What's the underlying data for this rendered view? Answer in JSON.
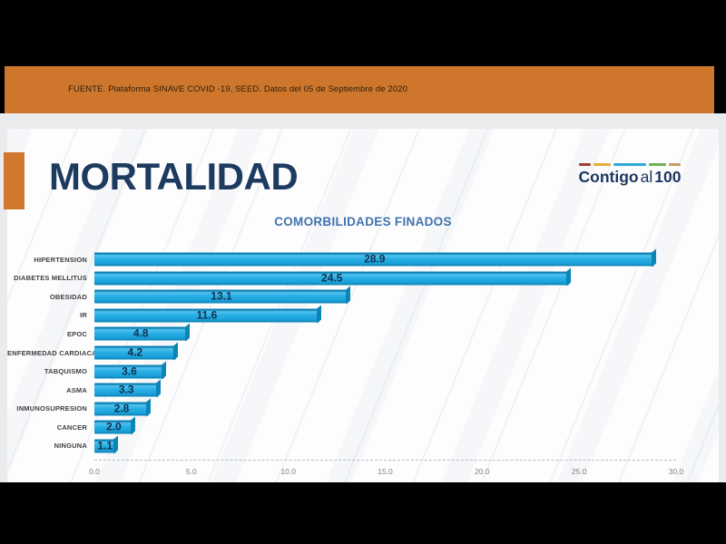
{
  "banner": {
    "source_text": "FUENTE. Plataforma SINAVE COVID -19, SEED. Datos del 05 de Septiembre de 2020",
    "background_color": "#CE762B"
  },
  "slide": {
    "title": "MORTALIDAD",
    "title_color": "#1D3A5F",
    "accent_color": "#D0782E",
    "logo": {
      "text_bold_1": "Contigo",
      "text_regular": "al",
      "text_bold_2": "100",
      "text_color": "#1E3760",
      "dash_colors": [
        "#9E3B36",
        "#E8AC3B",
        "#30A9DD",
        "#6FB254",
        "#C79A67"
      ]
    }
  },
  "chart_data": {
    "type": "bar",
    "orientation": "horizontal",
    "title": "COMORBILIDADES FINADOS",
    "title_color": "#4272AE",
    "categories": [
      "HIPERTENSION",
      "DIABETES MELLITUS",
      "OBESIDAD",
      "IR",
      "EPOC",
      "ENFERMEDAD CARDIACA",
      "TABQUISMO",
      "ASMA",
      "INMUNOSUPRESION",
      "CANCER",
      "NINGUNA"
    ],
    "values": [
      28.9,
      24.5,
      13.1,
      11.6,
      4.8,
      4.2,
      3.6,
      3.3,
      2.8,
      2.0,
      1.1
    ],
    "value_labels": [
      "28.9",
      "24.5",
      "13.1",
      "11.6",
      "4.8",
      "4.2",
      "3.6",
      "3.3",
      "2.8",
      "2.0",
      "1.1"
    ],
    "xlim": [
      0,
      30
    ],
    "x_tick_values": [
      0,
      5,
      10,
      15,
      20,
      25,
      30
    ],
    "x_tick_labels": [
      "0.0",
      "5.0",
      "10.0",
      "15.0",
      "20.0",
      "25.0",
      "30.0"
    ],
    "bar_color": "#1CA5DC",
    "value_label_color": "#14304D",
    "grid": false,
    "legend": false
  }
}
